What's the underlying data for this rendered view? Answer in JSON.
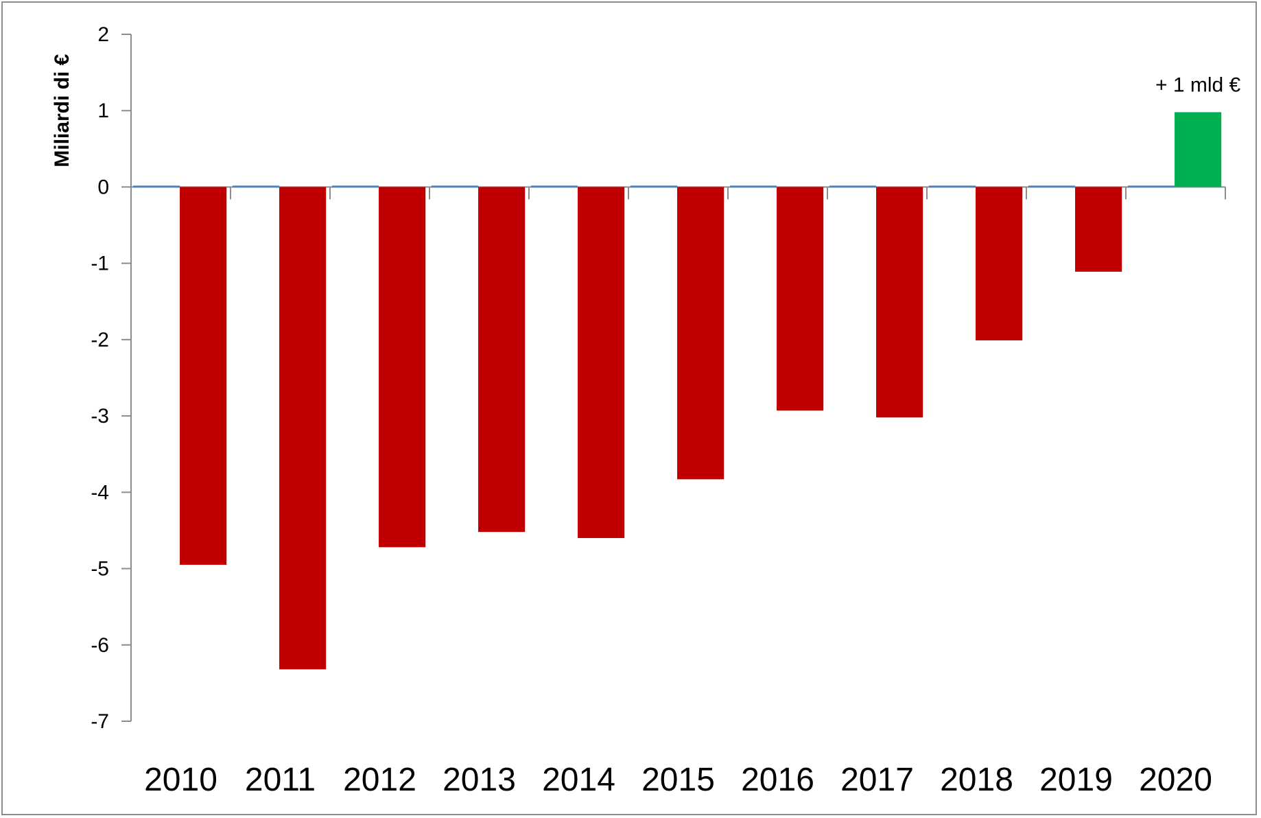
{
  "chart_data": {
    "type": "bar",
    "title": "",
    "xlabel": "",
    "ylabel": "Miliardi di €",
    "ylim": [
      -7,
      2
    ],
    "yticks": [
      2,
      1,
      0,
      -1,
      -2,
      -3,
      -4,
      -5,
      -6,
      -7
    ],
    "categories": [
      "2010",
      "2011",
      "2012",
      "2013",
      "2014",
      "2015",
      "2016",
      "2017",
      "2018",
      "2019",
      "2020"
    ],
    "series": [
      {
        "values": [
          -4.95,
          -6.32,
          -4.72,
          -4.52,
          -4.6,
          -3.83,
          -2.93,
          -3.02,
          -2.01,
          -1.11,
          0.98
        ],
        "negative_color": "#c00000",
        "positive_color": "#00b050"
      },
      {
        "values": [
          0,
          0,
          0,
          0,
          0,
          0,
          0,
          0,
          0,
          0,
          0
        ],
        "color": "#4f81bd"
      }
    ],
    "annotations": [
      {
        "category": "2020",
        "text": "+ 1 mld €"
      }
    ],
    "grid": false,
    "legend": "none"
  }
}
